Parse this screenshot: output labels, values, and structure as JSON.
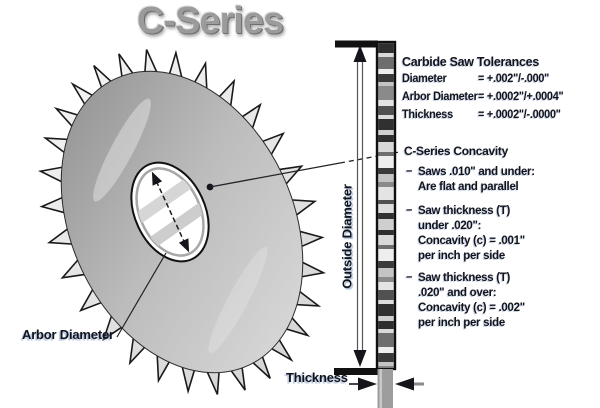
{
  "title": "C-Series",
  "labels": {
    "arbor_diameter": "Arbor Diameter",
    "outside_diameter": "Outside Diameter",
    "thickness": "Thickness"
  },
  "tolerances": {
    "heading": "Carbide Saw Tolerances",
    "rows": [
      {
        "label": "Diameter",
        "value": "= +.002\"/-.000\""
      },
      {
        "label": "Arbor Diameter",
        "value": "= +.0002\"/+.0004\""
      },
      {
        "label": "Thickness",
        "value": "= +.0002\"/-.0000\""
      }
    ]
  },
  "concavity": {
    "heading": "C-Series Concavity",
    "bullet_dash": "–",
    "bullets": [
      {
        "lines": [
          "Saws .010\" and under:",
          "Are flat and parallel"
        ]
      },
      {
        "lines": [
          "Saw thickness (T)",
          "under .020\":",
          "Concavity (c) = .001\"",
          "per inch per side"
        ]
      },
      {
        "lines": [
          "Saw thickness (T)",
          ".020\" and over:",
          "Concavity (c) = .002\"",
          "per inch per side"
        ]
      }
    ]
  },
  "colors": {
    "outline": "#1a1a1a",
    "blade_light": "#f2f2f2",
    "blade_dark": "#8f8f8f",
    "text": "#14141c",
    "title_gray": "#9b9b9b"
  }
}
